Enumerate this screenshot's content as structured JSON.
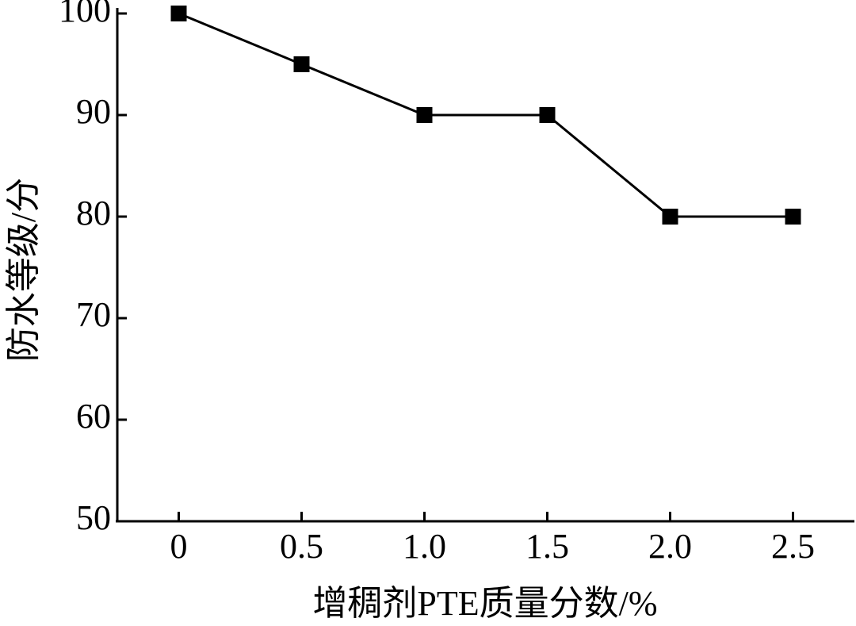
{
  "chart_data": {
    "type": "line",
    "x_label": "增稠剂PTE质量分数/%",
    "y_label": "防水等级/分",
    "x": [
      0,
      0.5,
      1,
      1.5,
      2,
      2.5
    ],
    "values": [
      100,
      95,
      90,
      90,
      80,
      80
    ],
    "color": "#000000",
    "marker": "square",
    "xlim": [
      -0.25,
      2.75
    ],
    "ylim": [
      50,
      100
    ],
    "xticks": [
      0,
      0.5,
      {
        "value": 1,
        "label": "1.0"
      },
      1.5,
      {
        "value": 2,
        "label": "2.0"
      },
      2.5
    ],
    "yticks": [
      50,
      60,
      70,
      80,
      90,
      100
    ]
  }
}
